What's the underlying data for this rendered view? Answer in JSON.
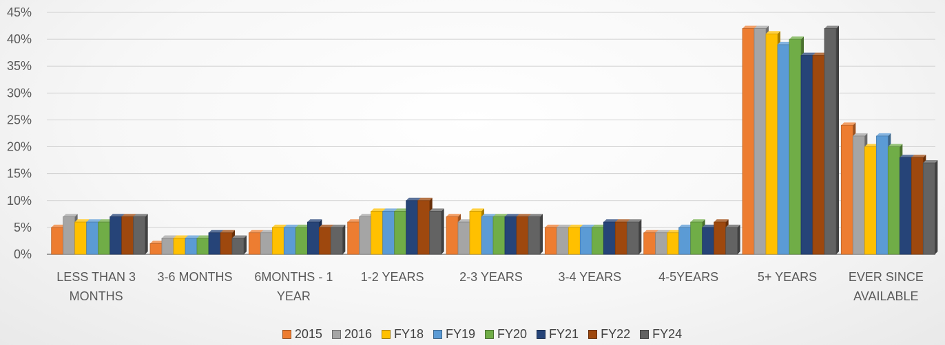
{
  "chart_data": {
    "type": "bar",
    "title": "",
    "xlabel": "",
    "ylabel": "",
    "ylim": [
      0,
      45
    ],
    "yticks": [
      0,
      5,
      10,
      15,
      20,
      25,
      30,
      35,
      40,
      45
    ],
    "ytick_labels": [
      "0%",
      "5%",
      "10%",
      "15%",
      "20%",
      "25%",
      "30%",
      "35%",
      "40%",
      "45%"
    ],
    "grid": true,
    "legend_position": "bottom",
    "categories": [
      [
        "LESS THAN 3",
        "MONTHS"
      ],
      [
        "3-6 MONTHS"
      ],
      [
        "6MONTHS - 1",
        "YEAR"
      ],
      [
        "1-2 YEARS"
      ],
      [
        "2-3 YEARS"
      ],
      [
        "3-4 YEARS"
      ],
      [
        "4-5YEARS"
      ],
      [
        "5+ YEARS"
      ],
      [
        "EVER SINCE",
        "AVAILABLE"
      ]
    ],
    "series": [
      {
        "name": "2015",
        "color": "#ED7D31",
        "values": [
          5,
          2,
          4,
          6,
          7,
          5,
          4,
          42,
          24
        ]
      },
      {
        "name": "2016",
        "color": "#A5A5A5",
        "values": [
          7,
          3,
          4,
          7,
          6,
          5,
          4,
          42,
          22
        ]
      },
      {
        "name": "FY18",
        "color": "#FFC000",
        "values": [
          6,
          3,
          5,
          8,
          8,
          5,
          4,
          41,
          20
        ]
      },
      {
        "name": "FY19",
        "color": "#5B9BD5",
        "values": [
          6,
          3,
          5,
          8,
          7,
          5,
          5,
          39,
          22
        ]
      },
      {
        "name": "FY20",
        "color": "#70AD47",
        "values": [
          6,
          3,
          5,
          8,
          7,
          5,
          6,
          40,
          20
        ]
      },
      {
        "name": "FY21",
        "color": "#264478",
        "values": [
          7,
          4,
          6,
          10,
          7,
          6,
          5,
          37,
          18
        ]
      },
      {
        "name": "FY22",
        "color": "#9E480E",
        "values": [
          7,
          4,
          5,
          10,
          7,
          6,
          6,
          37,
          18
        ]
      },
      {
        "name": "FY24",
        "color": "#636363",
        "values": [
          7,
          3,
          5,
          8,
          7,
          6,
          5,
          42,
          17
        ]
      }
    ]
  }
}
